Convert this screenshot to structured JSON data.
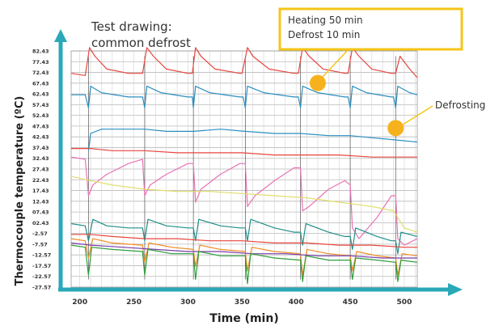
{
  "chart_data": {
    "type": "line",
    "title": "Test drawing:",
    "subtitle": "common defrost",
    "xlabel": "Time (min)",
    "ylabel": "Thermocouple temperature (ºC)",
    "xlim": [
      190,
      512
    ],
    "ylim": [
      -27.57,
      87.43
    ],
    "x_ticks": [
      "200",
      "250",
      "300",
      "350",
      "400",
      "450",
      "500"
    ],
    "y_ticks": [
      "82.43",
      "77.43",
      "72.43",
      "67.43",
      "62.43",
      "57.43",
      "52.43",
      "47.43",
      "42.43",
      "37.43",
      "32.43",
      "27.43",
      "22.43",
      "17.43",
      "12.43",
      "07.43",
      "02.43",
      "-2.57",
      "-7.57",
      "-12.57",
      "-17.57",
      "-22.57",
      "-27.57"
    ],
    "grid": true,
    "defrost_times": [
      208,
      260,
      305,
      353,
      404,
      450,
      492
    ],
    "annotations": [
      {
        "id": "heating",
        "lines": [
          "Heating 50 min",
          "Defrost 10 min"
        ],
        "x": 420,
        "y": 67.5
      },
      {
        "id": "defrost",
        "text": "Defrosting",
        "x": 492,
        "y": 46.5
      }
    ],
    "series": [
      {
        "color": "#e8463f",
        "points": [
          [
            192,
            72
          ],
          [
            205,
            71
          ],
          [
            209,
            84
          ],
          [
            214,
            80
          ],
          [
            225,
            74
          ],
          [
            245,
            72
          ],
          [
            258,
            72
          ],
          [
            262,
            84
          ],
          [
            268,
            80
          ],
          [
            280,
            74
          ],
          [
            300,
            72
          ],
          [
            304,
            72
          ],
          [
            307,
            84
          ],
          [
            312,
            80
          ],
          [
            325,
            74
          ],
          [
            348,
            72
          ],
          [
            350,
            72
          ],
          [
            355,
            84
          ],
          [
            360,
            80
          ],
          [
            375,
            74
          ],
          [
            398,
            72
          ],
          [
            402,
            72
          ],
          [
            406,
            84
          ],
          [
            412,
            80
          ],
          [
            425,
            74
          ],
          [
            445,
            72
          ],
          [
            448,
            72
          ],
          [
            452,
            84
          ],
          [
            458,
            80
          ],
          [
            470,
            74
          ],
          [
            488,
            72
          ],
          [
            492,
            72
          ],
          [
            496,
            80
          ],
          [
            505,
            74
          ],
          [
            512,
            70
          ]
        ]
      },
      {
        "color": "#2a8fc0",
        "points": [
          [
            192,
            62
          ],
          [
            205,
            62
          ],
          [
            208,
            56
          ],
          [
            210,
            66
          ],
          [
            220,
            63
          ],
          [
            245,
            61
          ],
          [
            258,
            61
          ],
          [
            260,
            56
          ],
          [
            262,
            66
          ],
          [
            275,
            63
          ],
          [
            300,
            61
          ],
          [
            304,
            61
          ],
          [
            305,
            56
          ],
          [
            307,
            66
          ],
          [
            320,
            63
          ],
          [
            348,
            61
          ],
          [
            351,
            61
          ],
          [
            353,
            56
          ],
          [
            355,
            66
          ],
          [
            370,
            63
          ],
          [
            398,
            61
          ],
          [
            402,
            61
          ],
          [
            404,
            56
          ],
          [
            406,
            66
          ],
          [
            420,
            63
          ],
          [
            445,
            61
          ],
          [
            448,
            61
          ],
          [
            450,
            56
          ],
          [
            452,
            66
          ],
          [
            465,
            63
          ],
          [
            488,
            61
          ],
          [
            490,
            61
          ],
          [
            492,
            56
          ],
          [
            494,
            66
          ],
          [
            505,
            63
          ],
          [
            512,
            62
          ]
        ]
      },
      {
        "color": "#2a8fc0",
        "points": [
          [
            208,
            36
          ],
          [
            210,
            44
          ],
          [
            220,
            46
          ],
          [
            260,
            46
          ],
          [
            280,
            45
          ],
          [
            305,
            45
          ],
          [
            330,
            46
          ],
          [
            353,
            45
          ],
          [
            380,
            44
          ],
          [
            404,
            44
          ],
          [
            430,
            43
          ],
          [
            450,
            43
          ],
          [
            470,
            42
          ],
          [
            492,
            41
          ],
          [
            512,
            40
          ]
        ]
      },
      {
        "color": "#e8463f",
        "points": [
          [
            192,
            37
          ],
          [
            210,
            37
          ],
          [
            230,
            36
          ],
          [
            260,
            36
          ],
          [
            290,
            35
          ],
          [
            320,
            35
          ],
          [
            350,
            35
          ],
          [
            380,
            34
          ],
          [
            410,
            34
          ],
          [
            440,
            34
          ],
          [
            470,
            33
          ],
          [
            500,
            33
          ],
          [
            512,
            33
          ]
        ]
      },
      {
        "color": "#e872b4",
        "points": [
          [
            192,
            33
          ],
          [
            205,
            32
          ],
          [
            208,
            15
          ],
          [
            212,
            20
          ],
          [
            225,
            25
          ],
          [
            245,
            30
          ],
          [
            258,
            32
          ],
          [
            260,
            15
          ],
          [
            265,
            20
          ],
          [
            280,
            25
          ],
          [
            300,
            30
          ],
          [
            305,
            30
          ],
          [
            307,
            12
          ],
          [
            312,
            18
          ],
          [
            330,
            25
          ],
          [
            348,
            30
          ],
          [
            353,
            30
          ],
          [
            355,
            10
          ],
          [
            362,
            15
          ],
          [
            380,
            22
          ],
          [
            398,
            28
          ],
          [
            404,
            28
          ],
          [
            406,
            8
          ],
          [
            412,
            10
          ],
          [
            430,
            18
          ],
          [
            445,
            22
          ],
          [
            450,
            20
          ],
          [
            452,
            0
          ],
          [
            458,
            -5
          ],
          [
            475,
            5
          ],
          [
            488,
            15
          ],
          [
            492,
            15
          ],
          [
            494,
            -5
          ],
          [
            500,
            -8
          ],
          [
            512,
            -5
          ]
        ]
      },
      {
        "color": "#e0dd6a",
        "points": [
          [
            192,
            24
          ],
          [
            210,
            22
          ],
          [
            230,
            20
          ],
          [
            260,
            18
          ],
          [
            290,
            17
          ],
          [
            320,
            17
          ],
          [
            350,
            16
          ],
          [
            380,
            15
          ],
          [
            410,
            14
          ],
          [
            440,
            12
          ],
          [
            470,
            10
          ],
          [
            490,
            8
          ],
          [
            500,
            0
          ],
          [
            512,
            -2
          ]
        ]
      },
      {
        "color": "#1f8f8a",
        "points": [
          [
            192,
            2
          ],
          [
            205,
            1
          ],
          [
            208,
            -6
          ],
          [
            212,
            4
          ],
          [
            225,
            1
          ],
          [
            245,
            0
          ],
          [
            258,
            0
          ],
          [
            260,
            -6
          ],
          [
            263,
            4
          ],
          [
            280,
            1
          ],
          [
            300,
            0
          ],
          [
            305,
            0
          ],
          [
            307,
            -6
          ],
          [
            310,
            4
          ],
          [
            330,
            1
          ],
          [
            348,
            0
          ],
          [
            353,
            0
          ],
          [
            355,
            -6
          ],
          [
            358,
            4
          ],
          [
            380,
            0
          ],
          [
            398,
            -2
          ],
          [
            404,
            -2
          ],
          [
            406,
            -8
          ],
          [
            409,
            2
          ],
          [
            430,
            -2
          ],
          [
            445,
            -4
          ],
          [
            450,
            -4
          ],
          [
            452,
            -10
          ],
          [
            455,
            0
          ],
          [
            475,
            -4
          ],
          [
            488,
            -6
          ],
          [
            492,
            -6
          ],
          [
            494,
            -12
          ],
          [
            497,
            -2
          ],
          [
            512,
            -4
          ]
        ]
      },
      {
        "color": "#e8463f",
        "points": [
          [
            192,
            -3
          ],
          [
            210,
            -3
          ],
          [
            230,
            -4
          ],
          [
            260,
            -5
          ],
          [
            290,
            -5
          ],
          [
            320,
            -6
          ],
          [
            350,
            -6
          ],
          [
            380,
            -7
          ],
          [
            410,
            -7
          ],
          [
            440,
            -8
          ],
          [
            470,
            -8
          ],
          [
            500,
            -9
          ],
          [
            512,
            -9
          ]
        ]
      },
      {
        "color": "#f08a24",
        "points": [
          [
            192,
            -5
          ],
          [
            205,
            -6
          ],
          [
            208,
            -14
          ],
          [
            212,
            -5
          ],
          [
            230,
            -7
          ],
          [
            258,
            -8
          ],
          [
            260,
            -16
          ],
          [
            264,
            -7
          ],
          [
            285,
            -9
          ],
          [
            305,
            -10
          ],
          [
            307,
            -18
          ],
          [
            311,
            -8
          ],
          [
            330,
            -10
          ],
          [
            353,
            -11
          ],
          [
            355,
            -20
          ],
          [
            359,
            -9
          ],
          [
            380,
            -11
          ],
          [
            404,
            -12
          ],
          [
            406,
            -22
          ],
          [
            410,
            -10
          ],
          [
            430,
            -12
          ],
          [
            450,
            -13
          ],
          [
            452,
            -20
          ],
          [
            456,
            -11
          ],
          [
            475,
            -13
          ],
          [
            492,
            -14
          ],
          [
            494,
            -22
          ],
          [
            498,
            -12
          ],
          [
            512,
            -13
          ]
        ]
      },
      {
        "color": "#7a3ea8",
        "points": [
          [
            192,
            -7
          ],
          [
            210,
            -8
          ],
          [
            240,
            -9
          ],
          [
            270,
            -10
          ],
          [
            300,
            -11
          ],
          [
            330,
            -11
          ],
          [
            360,
            -12
          ],
          [
            390,
            -12
          ],
          [
            420,
            -13
          ],
          [
            450,
            -13
          ],
          [
            480,
            -14
          ],
          [
            512,
            -14
          ]
        ]
      },
      {
        "color": "#2e9e3a",
        "points": [
          [
            192,
            -8
          ],
          [
            205,
            -9
          ],
          [
            208,
            -22
          ],
          [
            211,
            -9
          ],
          [
            230,
            -10
          ],
          [
            258,
            -11
          ],
          [
            260,
            -22
          ],
          [
            263,
            -10
          ],
          [
            285,
            -12
          ],
          [
            305,
            -12
          ],
          [
            307,
            -24
          ],
          [
            310,
            -11
          ],
          [
            330,
            -13
          ],
          [
            353,
            -13
          ],
          [
            355,
            -26
          ],
          [
            358,
            -12
          ],
          [
            380,
            -14
          ],
          [
            404,
            -15
          ],
          [
            406,
            -25
          ],
          [
            409,
            -13
          ],
          [
            430,
            -15
          ],
          [
            450,
            -15
          ],
          [
            452,
            -24
          ],
          [
            455,
            -14
          ],
          [
            475,
            -15
          ],
          [
            492,
            -16
          ],
          [
            494,
            -25
          ],
          [
            497,
            -15
          ],
          [
            512,
            -16
          ]
        ]
      }
    ]
  }
}
